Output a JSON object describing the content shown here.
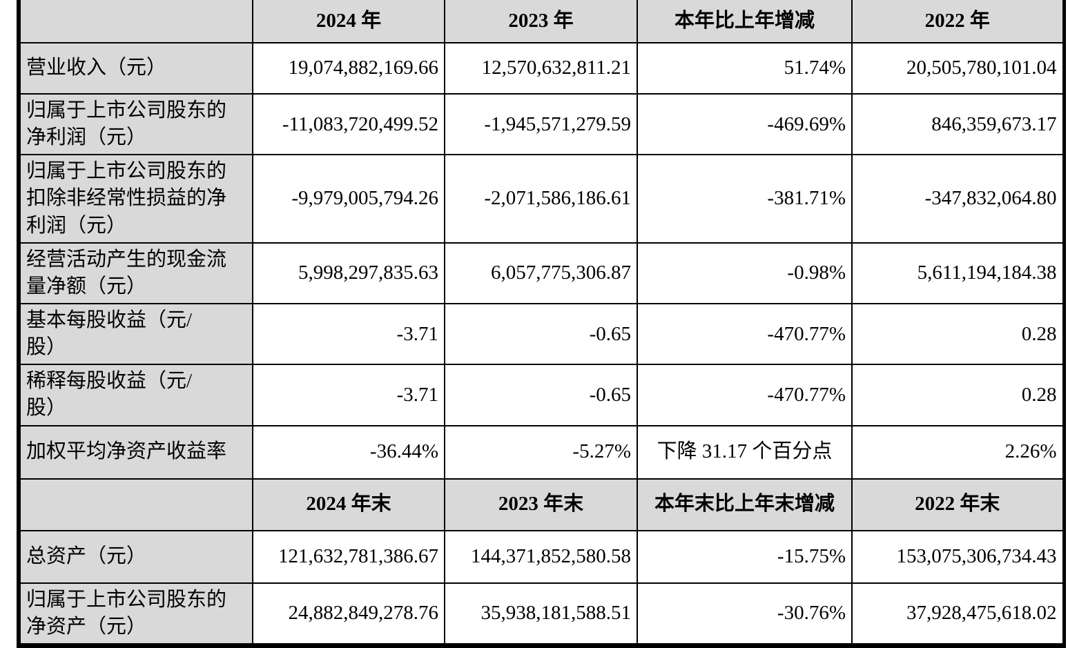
{
  "colors": {
    "header_bg": "#d9d9d9",
    "border": "#000000",
    "text": "#000000",
    "cell_bg": "#ffffff"
  },
  "table": {
    "header1": [
      "",
      "2024 年",
      "2023 年",
      "本年比上年增减",
      "2022 年"
    ],
    "header2": [
      "",
      "2024 年末",
      "2023 年末",
      "本年末比上年末增减",
      "2022 年末"
    ],
    "rows": [
      {
        "label": "营业收入（元）",
        "values": [
          "19,074,882,169.66",
          "12,570,632,811.21",
          "51.74%",
          "20,505,780,101.04"
        ]
      },
      {
        "label": "归属于上市公司股东的\n净利润（元）",
        "values": [
          "-11,083,720,499.52",
          "-1,945,571,279.59",
          "-469.69%",
          "846,359,673.17"
        ]
      },
      {
        "label": "归属于上市公司股东的\n扣除非经常性损益的净\n利润（元）",
        "values": [
          "-9,979,005,794.26",
          "-2,071,586,186.61",
          "-381.71%",
          "-347,832,064.80"
        ]
      },
      {
        "label": "经营活动产生的现金流\n量净额（元）",
        "values": [
          "5,998,297,835.63",
          "6,057,775,306.87",
          "-0.98%",
          "5,611,194,184.38"
        ]
      },
      {
        "label": "基本每股收益（元/\n股）",
        "values": [
          "-3.71",
          "-0.65",
          "-470.77%",
          "0.28"
        ]
      },
      {
        "label": "稀释每股收益（元/\n股）",
        "values": [
          "-3.71",
          "-0.65",
          "-470.77%",
          "0.28"
        ]
      },
      {
        "label": "加权平均净资产收益率",
        "values": [
          "-36.44%",
          "-5.27%",
          "下降 31.17 个百分点",
          "2.26%"
        ]
      },
      {
        "label": "总资产（元）",
        "values": [
          "121,632,781,386.67",
          "144,371,852,580.58",
          "-15.75%",
          "153,075,306,734.43"
        ]
      },
      {
        "label": "归属于上市公司股东的\n净资产（元）",
        "values": [
          "24,882,849,278.76",
          "35,938,181,588.51",
          "-30.76%",
          "37,928,475,618.02"
        ]
      }
    ]
  }
}
